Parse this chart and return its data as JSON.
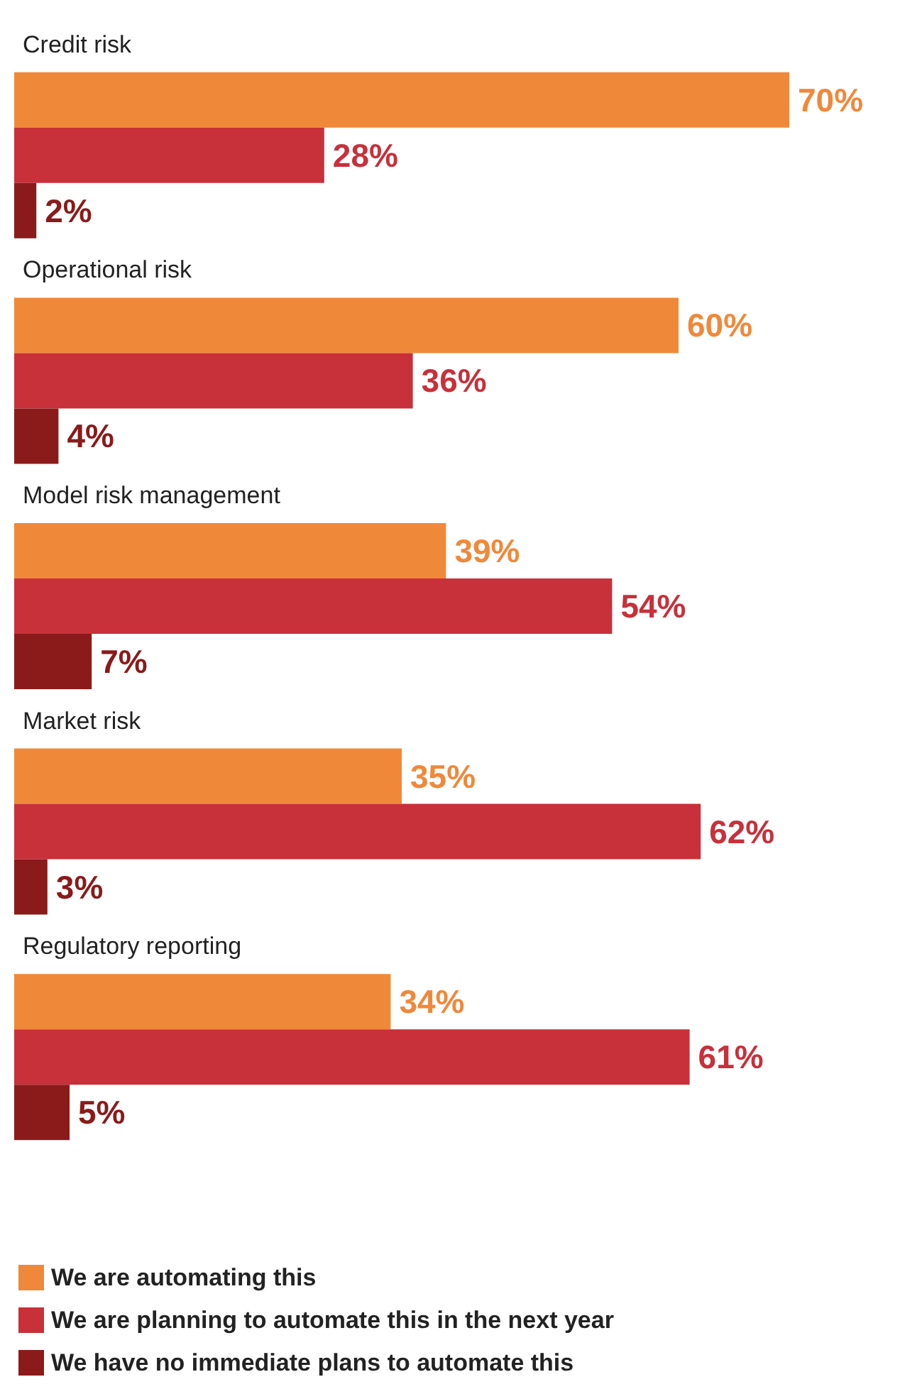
{
  "chart_data": {
    "type": "bar",
    "orientation": "horizontal",
    "categories": [
      "Credit risk",
      "Operational risk",
      "Model risk management",
      "Market risk",
      "Regulatory reporting"
    ],
    "series": [
      {
        "name": "We are automating this",
        "color": "#f0883a",
        "values": [
          70,
          60,
          39,
          35,
          34
        ],
        "value_labels": [
          "70%",
          "60%",
          "39%",
          "35%",
          "34%"
        ]
      },
      {
        "name": "We are planning to automate this in the next year",
        "color": "#c8303a",
        "values": [
          28,
          36,
          54,
          62,
          61
        ],
        "value_labels": [
          "28%",
          "36%",
          "54%",
          "62%",
          "61%"
        ]
      },
      {
        "name": "We have no immediate plans to automate this",
        "color": "#8b1a1a",
        "values": [
          2,
          4,
          7,
          3,
          5
        ],
        "value_labels": [
          "2%",
          "4%",
          "7%",
          "3%",
          "5%"
        ]
      }
    ],
    "legend": "bottom"
  }
}
